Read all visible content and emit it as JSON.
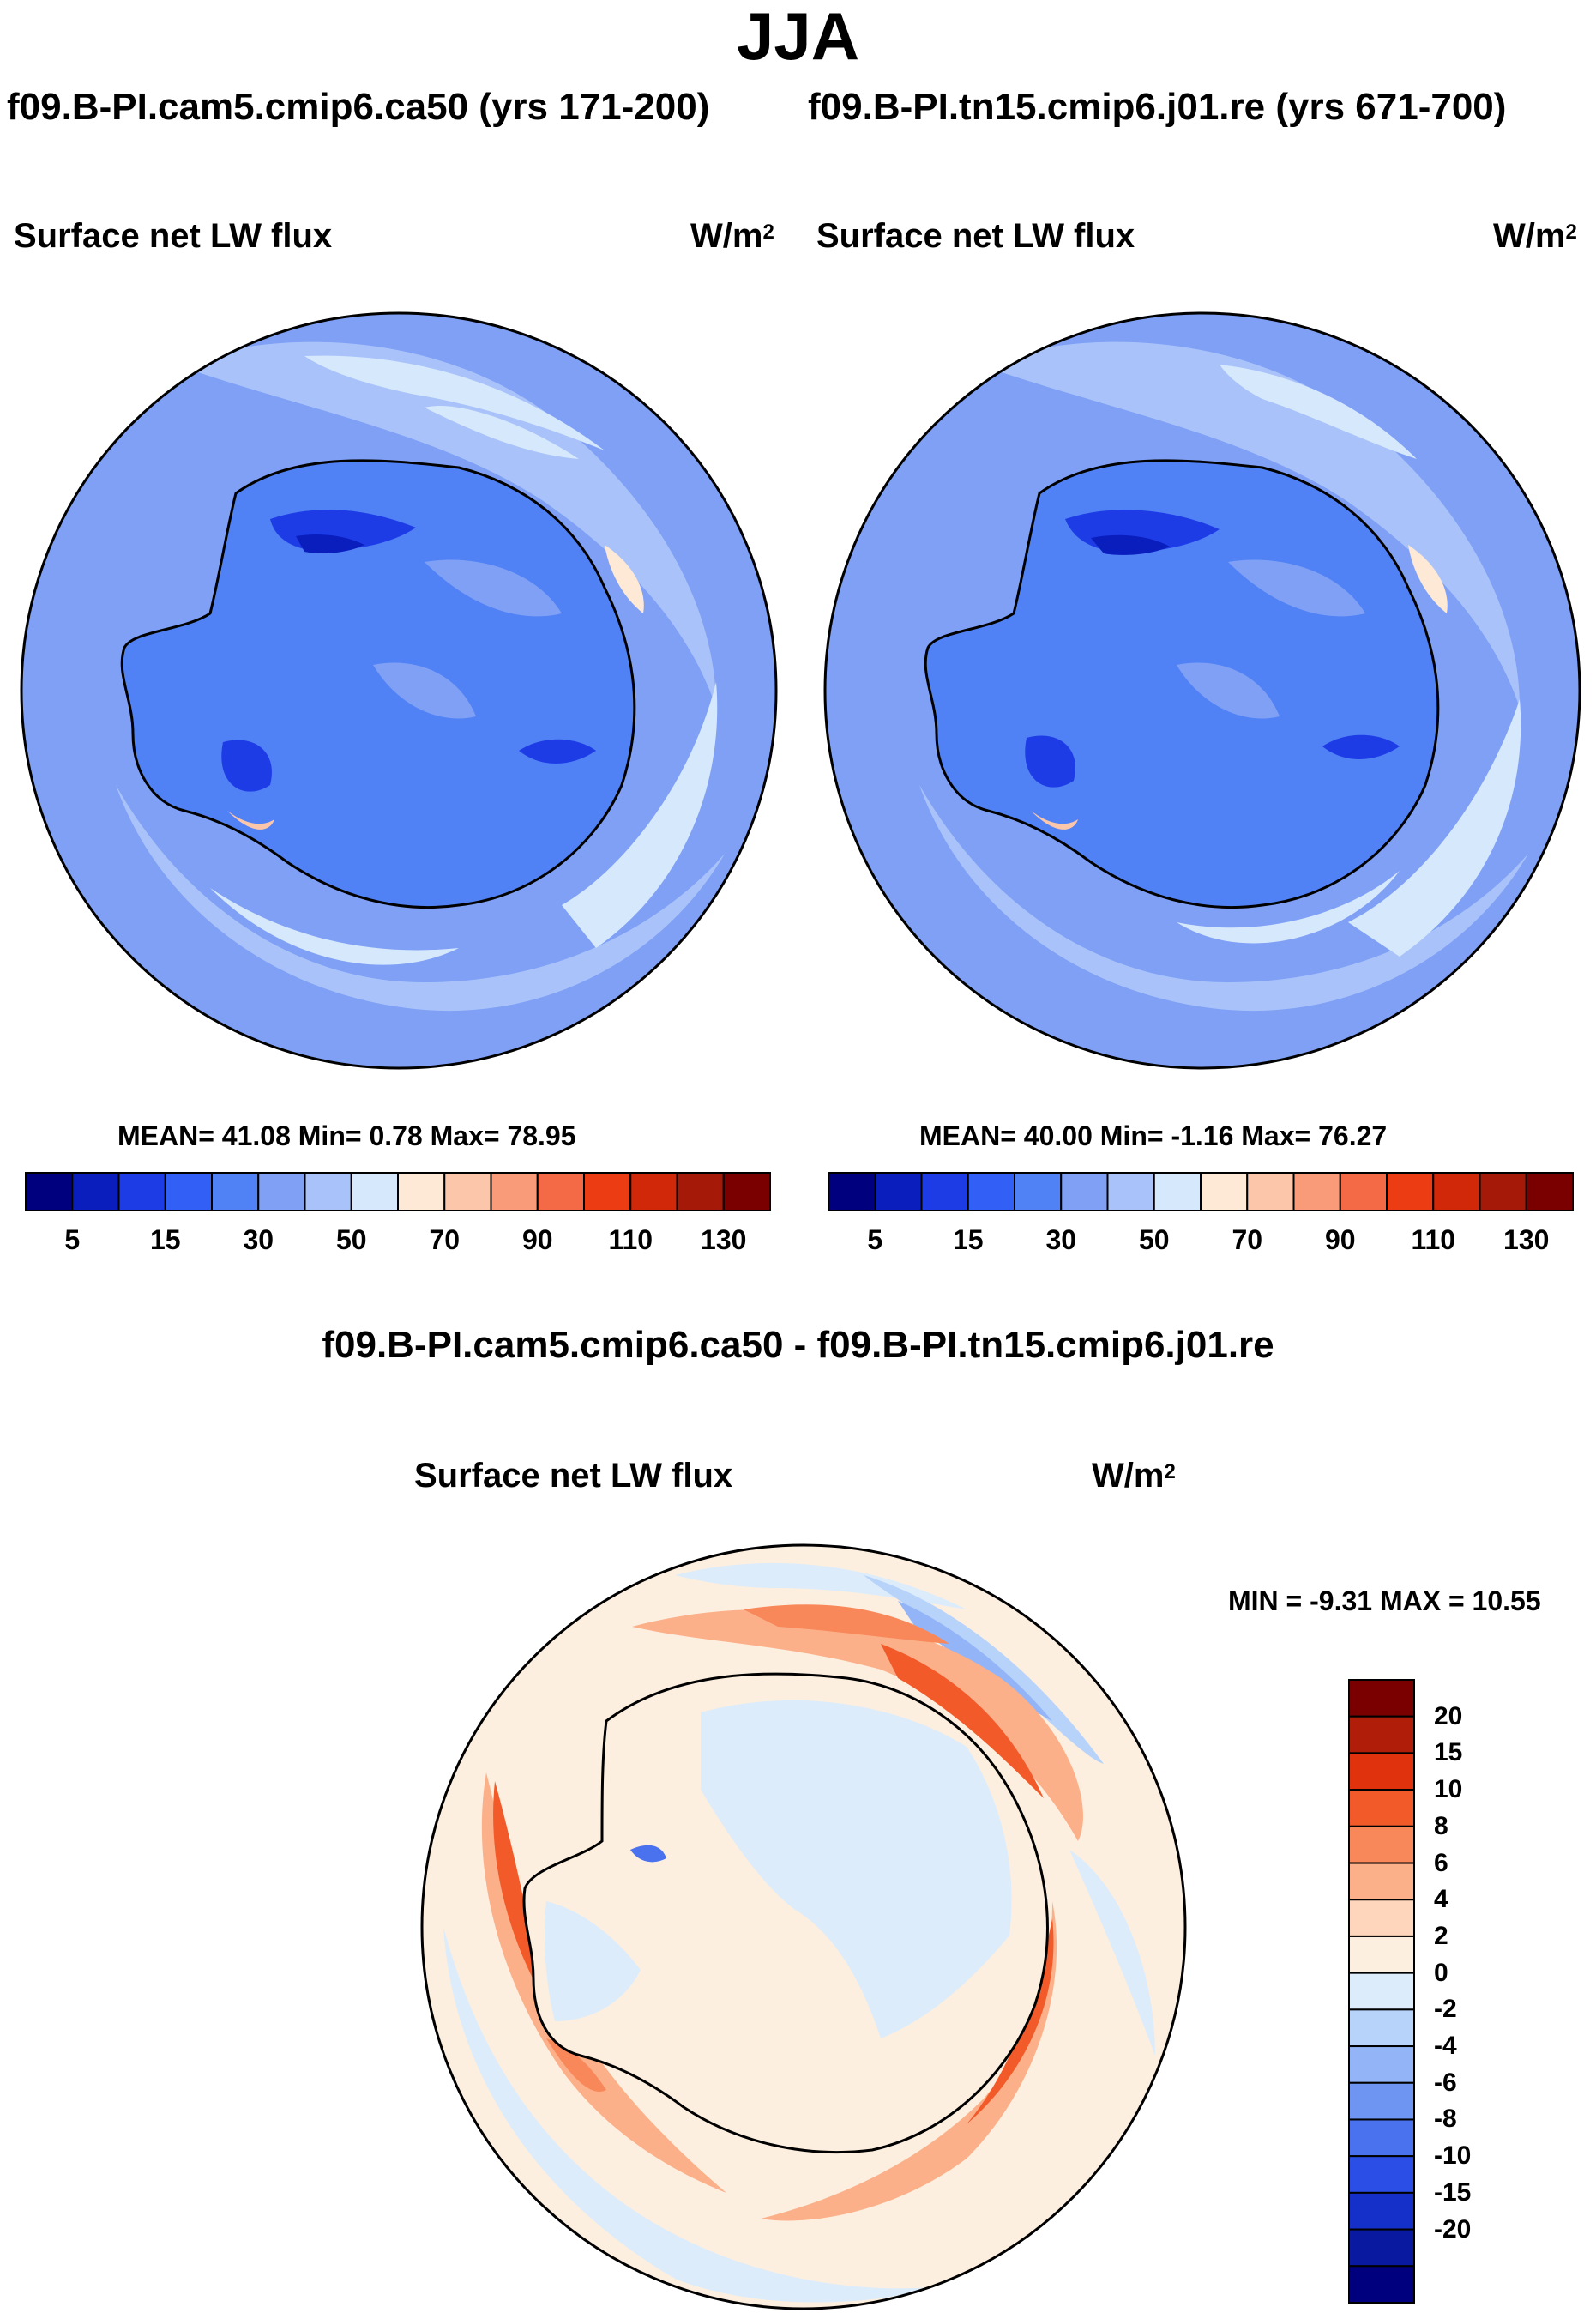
{
  "header": {
    "title": "JJA",
    "case_a": "f09.B-PI.cam5.cmip6.ca50 (yrs 171-200)",
    "case_b": "f09.B-PI.tn15.cmip6.j01.re (yrs 671-700)"
  },
  "panel_a": {
    "variable": "Surface net LW flux",
    "units_base": "W/m",
    "units_exp": "2",
    "stats_text": "MEAN=  41.08  Min=   0.78  Max=  78.95",
    "colorbar": {
      "colors": [
        "#00007f",
        "#0a1ebe",
        "#1e3ce6",
        "#325ff5",
        "#5082f5",
        "#7fa0f5",
        "#a9c3fa",
        "#d6e8fc",
        "#fde9d5",
        "#fcc6aa",
        "#f99a78",
        "#f56a46",
        "#ec3c14",
        "#d2280a",
        "#a51908",
        "#7a0000"
      ],
      "labels": [
        "5",
        "15",
        "30",
        "50",
        "70",
        "90",
        "110",
        "130"
      ]
    }
  },
  "panel_b": {
    "variable": "Surface net LW flux",
    "units_base": "W/m",
    "units_exp": "2",
    "stats_text": "MEAN=  40.00  Min=  -1.16  Max=  76.27",
    "colorbar": {
      "colors": [
        "#00007f",
        "#0a1ebe",
        "#1e3ce6",
        "#325ff5",
        "#5082f5",
        "#7fa0f5",
        "#a9c3fa",
        "#d6e8fc",
        "#fde9d5",
        "#fcc6aa",
        "#f99a78",
        "#f56a46",
        "#ec3c14",
        "#d2280a",
        "#a51908",
        "#7a0000"
      ],
      "labels": [
        "5",
        "15",
        "30",
        "50",
        "70",
        "90",
        "110",
        "130"
      ]
    }
  },
  "panel_diff": {
    "title": "f09.B-PI.cam5.cmip6.ca50 - f09.B-PI.tn15.cmip6.j01.re",
    "variable": "Surface net LW flux",
    "units_base": "W/m",
    "units_exp": "2",
    "stats_text": "MIN =  -9.31 MAX =  10.55",
    "colorbar": {
      "colors_top_to_bottom": [
        "#7a0000",
        "#b01e0a",
        "#e0320c",
        "#f25a2a",
        "#f8885a",
        "#fbb08a",
        "#fdd6bc",
        "#fdefdf",
        "#dcecfb",
        "#b8d3fa",
        "#93b5f7",
        "#6e95f2",
        "#4a72ee",
        "#2a4ee6",
        "#1530c8",
        "#0a1aa0",
        "#00007f"
      ],
      "labels_top_to_bottom": [
        "20",
        "15",
        "10",
        "8",
        "6",
        "4",
        "2",
        "0",
        "-2",
        "-4",
        "-6",
        "-8",
        "-10",
        "-15",
        "-20"
      ]
    }
  }
}
